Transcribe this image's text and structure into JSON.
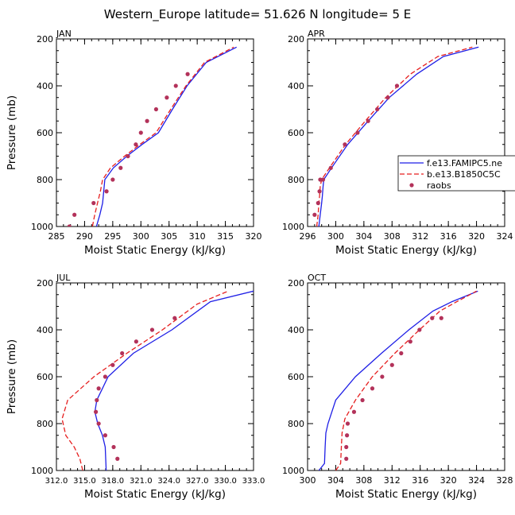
{
  "title": "Western_Europe  latitude= 51.626 N longitude= 5 E",
  "colors": {
    "model1": "#1f1fe6",
    "model2": "#e61f1f",
    "obs": "#b3325a"
  },
  "legend": {
    "placement": "right of APR panel",
    "entries": [
      "f.e13.FAMIPC5.ne",
      "b.e13.B1850C5C",
      "raobs"
    ]
  },
  "chart_data": [
    {
      "type": "line",
      "panel": "JAN",
      "xlabel": "Moist Static Energy (kJ/kg)",
      "ylabel": "Pressure (mb)",
      "xlim": [
        285,
        320
      ],
      "ylim": [
        1000,
        200
      ],
      "y_reversed": true,
      "xticks": [
        285,
        290,
        295,
        300,
        305,
        310,
        315,
        320
      ],
      "xtick_labels": [
        "285",
        "290",
        "295",
        "300",
        "305",
        "310",
        "315",
        "320"
      ],
      "yticks": [
        200,
        400,
        600,
        800,
        1000
      ],
      "ytick_labels": [
        "200",
        "400",
        "600",
        "800",
        "1000"
      ],
      "series": [
        {
          "name": "f.e13.FAMIPC5.ne",
          "style": "solid",
          "color": "#1f1fe6",
          "x": [
            292.1,
            292.7,
            293.2,
            293.4,
            293.6,
            295.1,
            297.5,
            300.2,
            303.1,
            305.6,
            308.2,
            311.6,
            317.0
          ],
          "y": [
            1000,
            950,
            900,
            850,
            800,
            750,
            700,
            650,
            600,
            500,
            400,
            300,
            235
          ]
        },
        {
          "name": "b.e13.B1850C5C",
          "style": "dashed",
          "color": "#e61f1f",
          "x": [
            291.4,
            291.8,
            292.3,
            292.8,
            293.2,
            294.6,
            297.1,
            299.8,
            302.7,
            305.3,
            308.0,
            311.3,
            316.5
          ],
          "y": [
            1000,
            950,
            900,
            850,
            800,
            750,
            700,
            650,
            600,
            500,
            400,
            300,
            235
          ]
        },
        {
          "name": "raobs",
          "style": "dots",
          "color": "#b3325a",
          "x": [
            287.3,
            288.2,
            291.6,
            293.9,
            295.0,
            296.4,
            297.7,
            299.1,
            300.0,
            301.1,
            302.7,
            304.6,
            306.2,
            308.3
          ],
          "y": [
            1000,
            950,
            900,
            850,
            800,
            750,
            700,
            650,
            600,
            550,
            500,
            450,
            400,
            350
          ]
        }
      ]
    },
    {
      "type": "line",
      "panel": "APR",
      "xlabel": "Moist Static Energy (kJ/kg)",
      "ylabel": "",
      "xlim": [
        296,
        324
      ],
      "ylim": [
        1000,
        200
      ],
      "y_reversed": true,
      "xticks": [
        296,
        300,
        304,
        308,
        312,
        316,
        320,
        324
      ],
      "xtick_labels": [
        "296",
        "300",
        "304",
        "308",
        "312",
        "316",
        "320",
        "324"
      ],
      "yticks": [
        200,
        400,
        600,
        800,
        1000
      ],
      "ytick_labels": [
        "200",
        "400",
        "600",
        "800",
        "1000"
      ],
      "series": [
        {
          "name": "f.e13.FAMIPC5.ne",
          "style": "solid",
          "color": "#1f1fe6",
          "x": [
            297.6,
            297.8,
            298.0,
            298.1,
            298.2,
            298.3,
            299.4,
            301.7,
            304.6,
            307.6,
            311.5,
            315.3,
            320.3
          ],
          "y": [
            1000,
            950,
            900,
            870,
            830,
            800,
            750,
            650,
            550,
            450,
            350,
            275,
            235
          ]
        },
        {
          "name": "b.e13.B1850C5C",
          "style": "dashed",
          "color": "#e61f1f",
          "x": [
            297.3,
            297.5,
            297.6,
            297.7,
            297.8,
            298.0,
            299.1,
            301.4,
            304.2,
            307.1,
            310.6,
            314.5,
            319.4
          ],
          "y": [
            1000,
            950,
            900,
            870,
            830,
            800,
            750,
            650,
            550,
            450,
            350,
            275,
            235
          ]
        },
        {
          "name": "raobs",
          "style": "dots",
          "color": "#b3325a",
          "x": [
            297.0,
            297.5,
            297.7,
            297.8,
            298.2,
            299.3,
            301.3,
            303.1,
            304.6,
            305.9,
            307.4,
            308.7
          ],
          "y": [
            950,
            900,
            850,
            800,
            800,
            750,
            650,
            600,
            550,
            500,
            450,
            400
          ]
        }
      ]
    },
    {
      "type": "line",
      "panel": "JUL",
      "xlabel": "Moist Static Energy (kJ/kg)",
      "ylabel": "Pressure (mb)",
      "xlim": [
        312.0,
        333.0
      ],
      "ylim": [
        1000,
        200
      ],
      "y_reversed": true,
      "xticks": [
        312.0,
        315.0,
        318.0,
        321.0,
        324.0,
        327.0,
        330.0,
        333.0
      ],
      "xtick_labels": [
        "312.0",
        "315.0",
        "318.0",
        "321.0",
        "324.0",
        "327.0",
        "330.0",
        "333.0"
      ],
      "yticks": [
        200,
        400,
        600,
        800,
        1000
      ],
      "ytick_labels": [
        "200",
        "400",
        "600",
        "800",
        "1000"
      ],
      "series": [
        {
          "name": "f.e13.FAMIPC5.ne",
          "style": "solid",
          "color": "#1f1fe6",
          "x": [
            317.3,
            317.2,
            316.9,
            316.4,
            316.1,
            316.3,
            317.5,
            320.2,
            324.3,
            328.4,
            333.0
          ],
          "y": [
            1000,
            900,
            850,
            800,
            750,
            700,
            600,
            500,
            400,
            280,
            235
          ]
        },
        {
          "name": "b.e13.B1850C5C",
          "style": "dashed",
          "color": "#e61f1f",
          "x": [
            314.8,
            314.5,
            313.9,
            313.0,
            312.6,
            313.2,
            316.0,
            319.5,
            323.3,
            327.0,
            330.3
          ],
          "y": [
            1000,
            950,
            900,
            850,
            780,
            700,
            600,
            500,
            400,
            290,
            235
          ]
        },
        {
          "name": "raobs",
          "style": "dots",
          "color": "#b3325a",
          "x": [
            318.5,
            318.1,
            317.2,
            316.5,
            316.2,
            316.3,
            316.5,
            317.2,
            318.0,
            319.0,
            320.5,
            322.2,
            324.6
          ],
          "y": [
            950,
            900,
            850,
            800,
            750,
            700,
            650,
            600,
            550,
            500,
            450,
            400,
            350
          ]
        }
      ]
    },
    {
      "type": "line",
      "panel": "OCT",
      "xlabel": "Moist Static Energy (kJ/kg)",
      "ylabel": "",
      "xlim": [
        300,
        328
      ],
      "ylim": [
        1000,
        200
      ],
      "y_reversed": true,
      "xticks": [
        300,
        304,
        308,
        312,
        316,
        320,
        324,
        328
      ],
      "xtick_labels": [
        "300",
        "304",
        "308",
        "312",
        "316",
        "320",
        "324",
        "328"
      ],
      "yticks": [
        200,
        400,
        600,
        800,
        1000
      ],
      "ytick_labels": [
        "200",
        "400",
        "600",
        "800",
        "1000"
      ],
      "series": [
        {
          "name": "f.e13.FAMIPC5.ne",
          "style": "solid",
          "color": "#1f1fe6",
          "x": [
            301.6,
            302.4,
            302.5,
            302.6,
            302.9,
            304.0,
            306.8,
            310.5,
            314.4,
            317.8,
            320.5,
            324.2
          ],
          "y": [
            1000,
            970,
            900,
            840,
            800,
            700,
            600,
            500,
            400,
            320,
            280,
            235
          ]
        },
        {
          "name": "b.e13.B1850C5C",
          "style": "dashed",
          "color": "#e61f1f",
          "x": [
            304.0,
            304.7,
            304.8,
            304.9,
            305.3,
            306.8,
            309.2,
            312.4,
            315.9,
            318.8,
            321.2,
            324.0
          ],
          "y": [
            1000,
            970,
            900,
            840,
            780,
            700,
            600,
            500,
            400,
            320,
            280,
            235
          ]
        },
        {
          "name": "raobs",
          "style": "dots",
          "color": "#b3325a",
          "x": [
            305.5,
            305.5,
            305.6,
            305.7,
            306.6,
            307.8,
            309.2,
            310.6,
            312.0,
            313.3,
            314.6,
            315.9,
            317.7,
            319.0
          ],
          "y": [
            950,
            900,
            850,
            800,
            750,
            700,
            650,
            600,
            550,
            500,
            450,
            400,
            350,
            350
          ]
        }
      ]
    }
  ]
}
